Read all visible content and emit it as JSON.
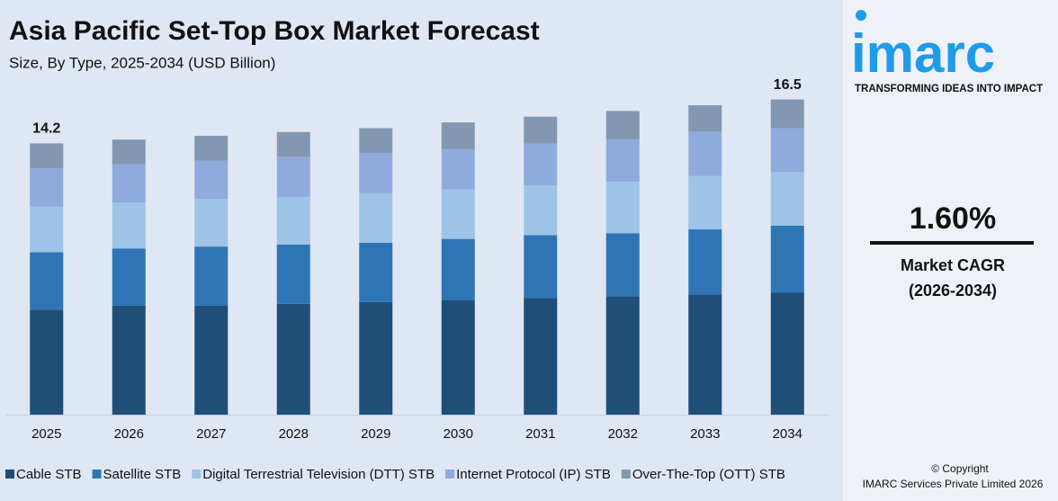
{
  "chart_data": {
    "type": "stacked_bar",
    "title": "Asia Pacific Set-Top Box Market Forecast",
    "subtitle": "Size, By Type, 2025-2034 (USD Billion)",
    "categories": [
      "2025",
      "2026",
      "2027",
      "2028",
      "2029",
      "2030",
      "2031",
      "2032",
      "2033",
      "2034"
    ],
    "series": [
      {
        "name": "Cable STB",
        "color": "#1f4e79",
        "values": [
          5.5,
          5.7,
          5.7,
          5.8,
          5.9,
          6.0,
          6.1,
          6.2,
          6.3,
          6.4
        ]
      },
      {
        "name": "Satellite STB",
        "color": "#2e75b6",
        "values": [
          3.0,
          3.0,
          3.1,
          3.1,
          3.1,
          3.2,
          3.3,
          3.3,
          3.4,
          3.5
        ]
      },
      {
        "name": "Digital Terrestrial Television (DTT) STB",
        "color": "#9dc3e6",
        "values": [
          2.4,
          2.4,
          2.5,
          2.5,
          2.6,
          2.6,
          2.6,
          2.7,
          2.8,
          2.8
        ]
      },
      {
        "name": "Internet Protocol (IP) STB",
        "color": "#8faadc",
        "values": [
          2.0,
          2.0,
          2.0,
          2.1,
          2.1,
          2.1,
          2.2,
          2.2,
          2.3,
          2.3
        ]
      },
      {
        "name": "Over-The-Top (OTT) STB",
        "color": "#8497b0",
        "values": [
          1.3,
          1.3,
          1.3,
          1.3,
          1.3,
          1.4,
          1.4,
          1.5,
          1.4,
          1.5
        ]
      }
    ],
    "total_labels": [
      {
        "index": 0,
        "value": 14.2
      },
      {
        "index": 9,
        "value": 16.5
      }
    ],
    "ylim": [
      0,
      17
    ],
    "grid": false,
    "legend": "bottom"
  },
  "side_panel": {
    "logo": "imarc",
    "tagline": "TRANSFORMING IDEAS INTO IMPACT",
    "cagr": "1.60%",
    "cagr_label": "Market CAGR",
    "cagr_period": "(2026-2034)",
    "copyright": "© Copyright",
    "company": "IMARC Services Private Limited 2026"
  }
}
